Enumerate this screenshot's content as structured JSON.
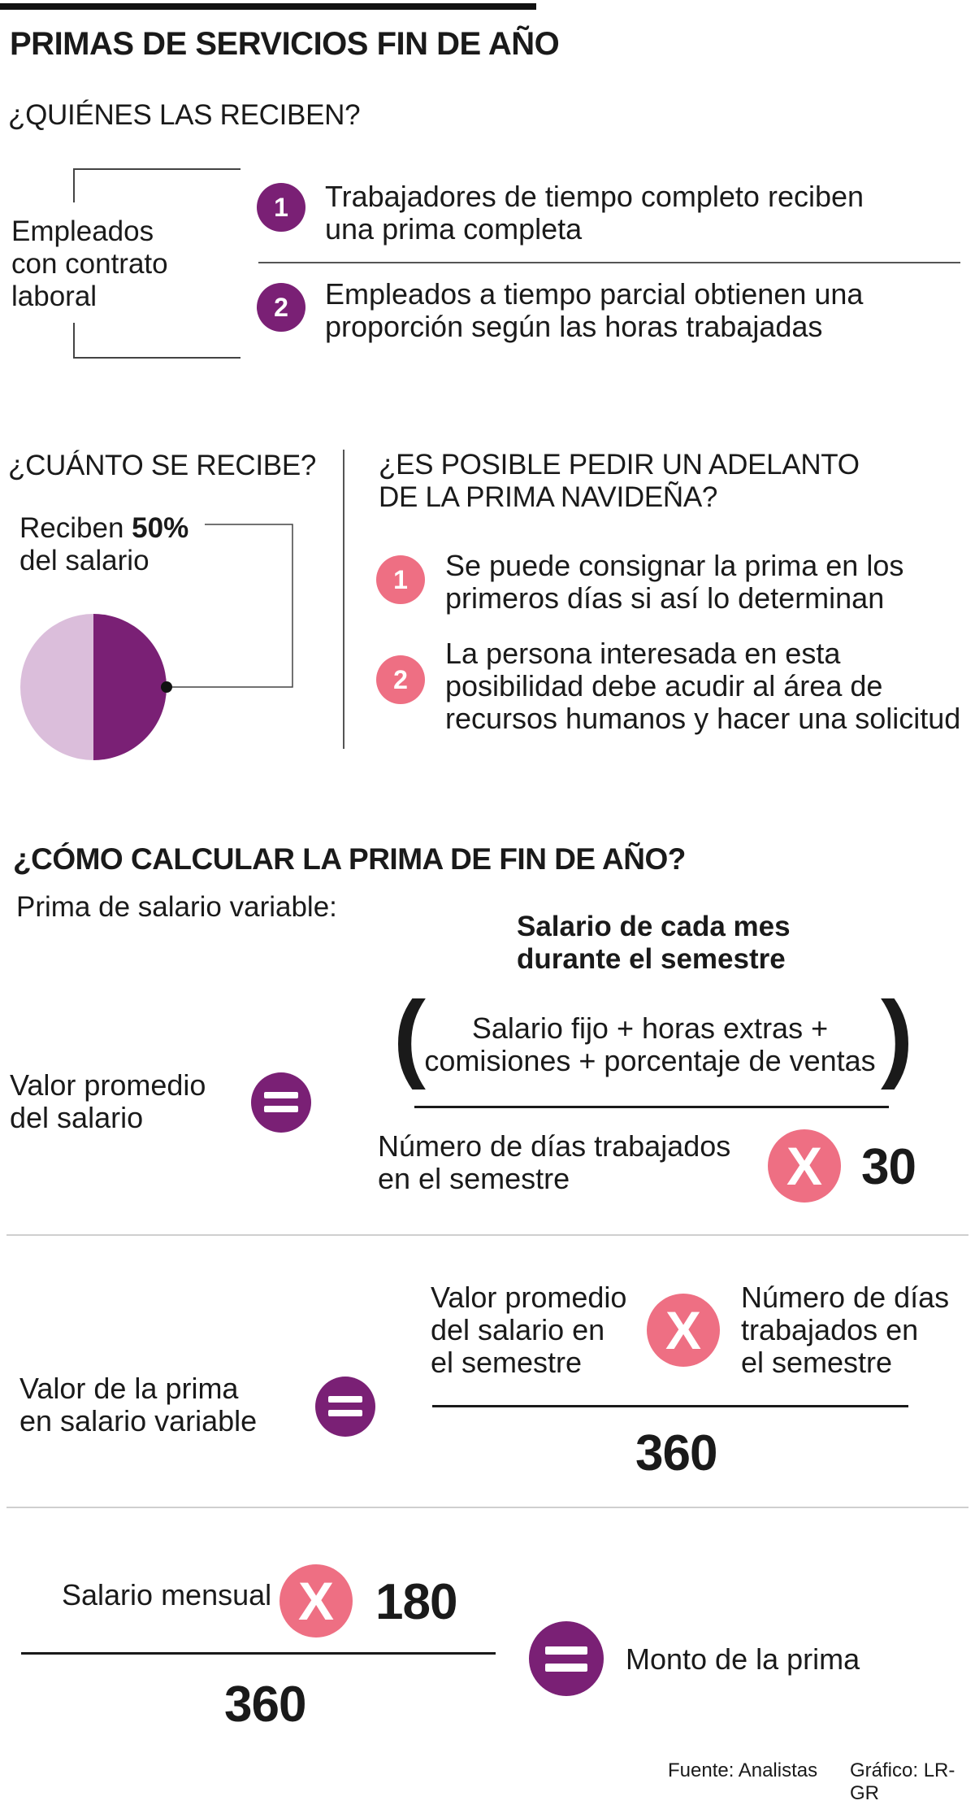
{
  "title": "PRIMAS DE SERVICIOS FIN DE AÑO",
  "who": {
    "heading": "¿QUIÉNES LAS RECIBEN?",
    "label": [
      "Empleados",
      "con contrato",
      "laboral"
    ],
    "items": [
      {
        "number": "1",
        "line1": "Trabajadores de tiempo completo reciben",
        "line2": "una prima completa"
      },
      {
        "number": "2",
        "line1": "Empleados a tiempo parcial obtienen una",
        "line2": "proporción según las horas trabajadas"
      }
    ]
  },
  "how_much": {
    "heading": "¿CUÁNTO SE RECIBE?",
    "prefix": "Reciben ",
    "percent": "50%",
    "suffix": "del salario",
    "pie_fraction": 0.5,
    "colors": {
      "filled": "#7a2075",
      "rest": "#dbbedb"
    }
  },
  "advance": {
    "heading_line1": "¿ES POSIBLE PEDIR UN ADELANTO",
    "heading_line2": "DE LA PRIMA NAVIDEÑA?",
    "items": [
      {
        "number": "1",
        "lines": [
          "Se puede consignar la prima en los",
          "primeros días si así lo determinan"
        ]
      },
      {
        "number": "2",
        "lines": [
          "La persona interesada en esta",
          "posibilidad debe acudir al área de",
          "recursos humanos y hacer una solicitud"
        ]
      }
    ]
  },
  "calc": {
    "heading": "¿CÓMO CALCULAR LA PRIMA DE FIN DE AÑO?",
    "subheading": "Prima de salario variable:",
    "f1": {
      "left": [
        "Valor promedio",
        "del salario"
      ],
      "top_title": [
        "Salario de cada mes",
        "durante el semestre"
      ],
      "numerator": [
        "Salario fijo + horas extras +",
        "comisiones + porcentaje de ventas"
      ],
      "denominator": [
        "Número de días trabajados",
        "en el semestre"
      ],
      "times": "X",
      "factor": "30"
    },
    "f2": {
      "left": [
        "Valor de la prima",
        "en salario variable"
      ],
      "num_left": [
        "Valor promedio",
        "del salario en",
        "el semestre"
      ],
      "times": "X",
      "num_right": [
        "Número de días",
        "trabajados en",
        "el semestre"
      ],
      "denominator": "360"
    },
    "f3": {
      "label": "Salario mensual",
      "times": "X",
      "factor": "180",
      "denominator": "360",
      "result": "Monto de la prima"
    }
  },
  "footer": {
    "source": "Fuente: Analistas",
    "credit": "Gráfico: LR-GR"
  },
  "colors": {
    "purple": "#7a2075",
    "pink": "#ee6f83",
    "light_purple": "#dbbedb"
  }
}
